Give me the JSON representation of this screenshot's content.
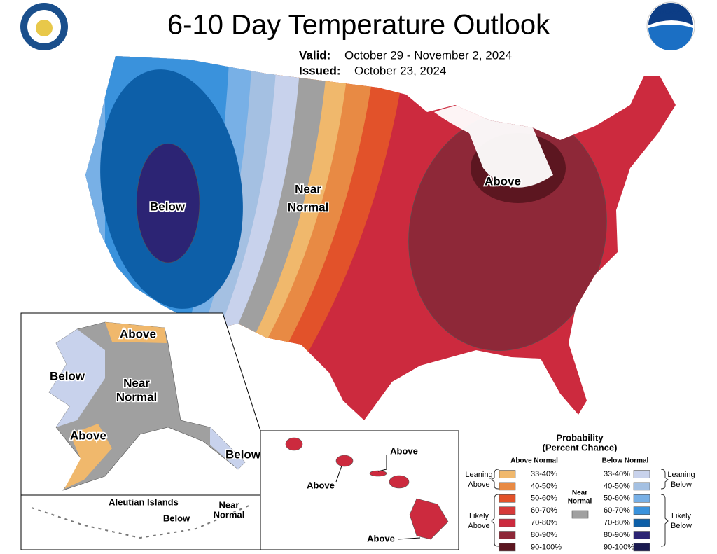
{
  "header": {
    "title": "6-10 Day Temperature Outlook",
    "valid_label": "Valid:",
    "valid_dates": "October 29 - November 2, 2024",
    "issued_label": "Issued:",
    "issued_date": "October 23, 2024",
    "noaa_logo": "NOAA"
  },
  "conus_labels": [
    [
      "Below"
    ],
    [
      "Near",
      "Normal"
    ],
    [
      "Above"
    ]
  ],
  "alaska_labels": [
    [
      "Above"
    ],
    [
      "Below"
    ],
    [
      "Near",
      "Normal"
    ],
    [
      "Above"
    ],
    [
      "Below"
    ]
  ],
  "aleutian": {
    "title": "Aleutian Islands",
    "labels": [
      [
        "Below"
      ],
      [
        "Near",
        "Normal"
      ]
    ]
  },
  "hawaii_labels": [
    [
      "Above"
    ],
    [
      "Above"
    ],
    [
      "Above"
    ]
  ],
  "legend": {
    "title": [
      "Probability",
      "(Percent Chance)"
    ],
    "above_heading": "Above Normal",
    "below_heading": "Below Normal",
    "near_normal": {
      "label": [
        "Near",
        "Normal"
      ],
      "color": "#a0a0a0"
    },
    "leaning_above": [
      "Leaning",
      "Above"
    ],
    "likely_above": [
      "Likely",
      "Above"
    ],
    "leaning_below": [
      "Leaning",
      "Below"
    ],
    "likely_below": [
      "Likely",
      "Below"
    ],
    "above_bins": [
      {
        "label": "33-40%",
        "color": "#f0b86c"
      },
      {
        "label": "40-50%",
        "color": "#e88a44"
      },
      {
        "label": "50-60%",
        "color": "#e2522a"
      },
      {
        "label": "60-70%",
        "color": "#d63a3a"
      },
      {
        "label": "70-80%",
        "color": "#cc2a3e"
      },
      {
        "label": "80-90%",
        "color": "#8e2838"
      },
      {
        "label": "90-100%",
        "color": "#5c1620"
      }
    ],
    "below_bins": [
      {
        "label": "33-40%",
        "color": "#c8d2ec"
      },
      {
        "label": "40-50%",
        "color": "#a4c0e2"
      },
      {
        "label": "50-60%",
        "color": "#78b0e6"
      },
      {
        "label": "60-70%",
        "color": "#3a92dc"
      },
      {
        "label": "70-80%",
        "color": "#0d5fa8"
      },
      {
        "label": "80-90%",
        "color": "#2c2474"
      },
      {
        "label": "90-100%",
        "color": "#1a1a50"
      }
    ]
  }
}
